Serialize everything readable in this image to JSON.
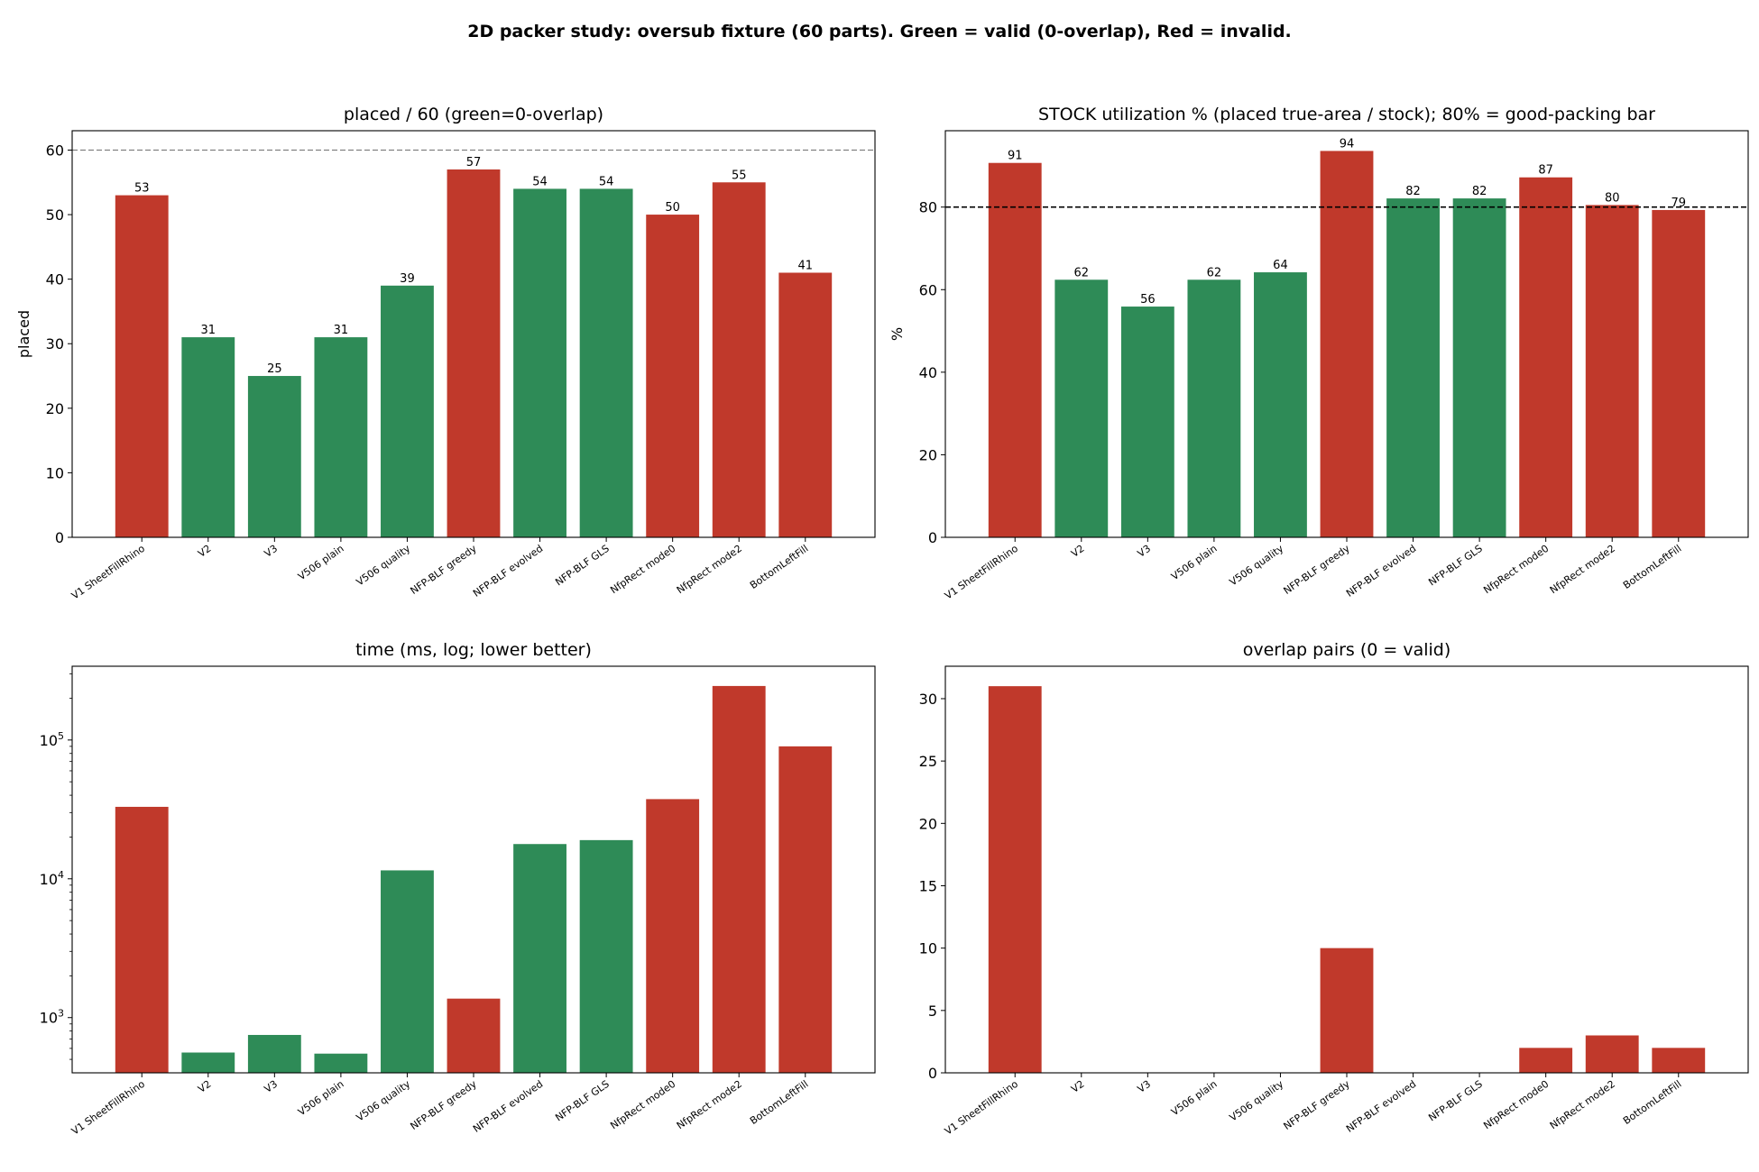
{
  "figure": {
    "title": "2D packer study: oversub fixture (60 parts). Green = valid (0-overlap), Red = invalid."
  },
  "colors": {
    "valid": "#2e8b57",
    "invalid": "#c0392b"
  },
  "chart_data": [
    {
      "id": "placed",
      "type": "bar",
      "title": "placed / 60 (green=0-overlap)",
      "xlabel": "",
      "ylabel": "placed",
      "ylim": [
        0,
        63
      ],
      "yscale": "linear",
      "yticks": [
        0,
        10,
        20,
        30,
        40,
        50,
        60
      ],
      "ytick_labels": [
        "0",
        "10",
        "20",
        "30",
        "40",
        "50",
        "60"
      ],
      "categories": [
        "V1 SheetFillRhino",
        "V2",
        "V3",
        "V506 plain",
        "V506 quality",
        "NFP-BLF greedy",
        "NFP-BLF evolved",
        "NFP-BLF GLS",
        "NfpRect mode0",
        "NfpRect mode2",
        "BottomLeftFill"
      ],
      "values": [
        53,
        31,
        25,
        31,
        39,
        57,
        54,
        54,
        50,
        55,
        41
      ],
      "data_labels": [
        "53",
        "31",
        "25",
        "31",
        "39",
        "57",
        "54",
        "54",
        "50",
        "55",
        "41"
      ],
      "valid": [
        false,
        true,
        true,
        true,
        true,
        false,
        true,
        true,
        false,
        false,
        false
      ],
      "reference_line": {
        "y": 60,
        "style": "dashed",
        "color": "#808080"
      },
      "grid": false
    },
    {
      "id": "utilization",
      "type": "bar",
      "title": "STOCK utilization % (placed true-area / stock); 80% = good-packing bar",
      "xlabel": "",
      "ylabel": "%",
      "ylim": [
        0,
        98.5
      ],
      "yscale": "linear",
      "yticks": [
        0,
        20,
        40,
        60,
        80
      ],
      "ytick_labels": [
        "0",
        "20",
        "40",
        "60",
        "80"
      ],
      "categories": [
        "V1 SheetFillRhino",
        "V2",
        "V3",
        "V506 plain",
        "V506 quality",
        "NFP-BLF greedy",
        "NFP-BLF evolved",
        "NFP-BLF GLS",
        "NfpRect mode0",
        "NfpRect mode2",
        "BottomLeftFill"
      ],
      "values": [
        90.7,
        62.4,
        55.9,
        62.4,
        64.2,
        93.6,
        82.1,
        82.1,
        87.2,
        80.5,
        79.3
      ],
      "data_labels": [
        "91",
        "62",
        "56",
        "62",
        "64",
        "94",
        "82",
        "82",
        "87",
        "80",
        "79"
      ],
      "valid": [
        false,
        true,
        true,
        true,
        true,
        false,
        true,
        true,
        false,
        false,
        false
      ],
      "reference_line": {
        "y": 80,
        "style": "dashed",
        "color": "#000000"
      },
      "grid": false
    },
    {
      "id": "time",
      "type": "bar",
      "title": "time (ms, log; lower better)",
      "xlabel": "",
      "ylabel": "",
      "ylim": [
        400,
        340000
      ],
      "yscale": "log",
      "yticks": [
        1000,
        10000,
        100000
      ],
      "ytick_labels": [
        "10^3",
        "10^4",
        "10^5"
      ],
      "categories": [
        "V1 SheetFillRhino",
        "V2",
        "V3",
        "V506 plain",
        "V506 quality",
        "NFP-BLF greedy",
        "NFP-BLF evolved",
        "NFP-BLF GLS",
        "NfpRect mode0",
        "NfpRect mode2",
        "BottomLeftFill"
      ],
      "values": [
        33000,
        560,
        750,
        550,
        11500,
        1370,
        17800,
        19000,
        37500,
        245000,
        90000
      ],
      "valid": [
        false,
        true,
        true,
        true,
        true,
        false,
        true,
        true,
        false,
        false,
        false
      ],
      "grid": false
    },
    {
      "id": "overlap",
      "type": "bar",
      "title": "overlap pairs (0 = valid)",
      "xlabel": "",
      "ylabel": "",
      "ylim": [
        0,
        32.6
      ],
      "yscale": "linear",
      "yticks": [
        0,
        5,
        10,
        15,
        20,
        25,
        30
      ],
      "ytick_labels": [
        "0",
        "5",
        "10",
        "15",
        "20",
        "25",
        "30"
      ],
      "categories": [
        "V1 SheetFillRhino",
        "V2",
        "V3",
        "V506 plain",
        "V506 quality",
        "NFP-BLF greedy",
        "NFP-BLF evolved",
        "NFP-BLF GLS",
        "NfpRect mode0",
        "NfpRect mode2",
        "BottomLeftFill"
      ],
      "values": [
        31,
        0,
        0,
        0,
        0,
        10,
        0,
        0,
        2,
        3,
        2
      ],
      "valid": [
        false,
        true,
        true,
        true,
        true,
        false,
        true,
        true,
        false,
        false,
        false
      ],
      "grid": false
    }
  ]
}
